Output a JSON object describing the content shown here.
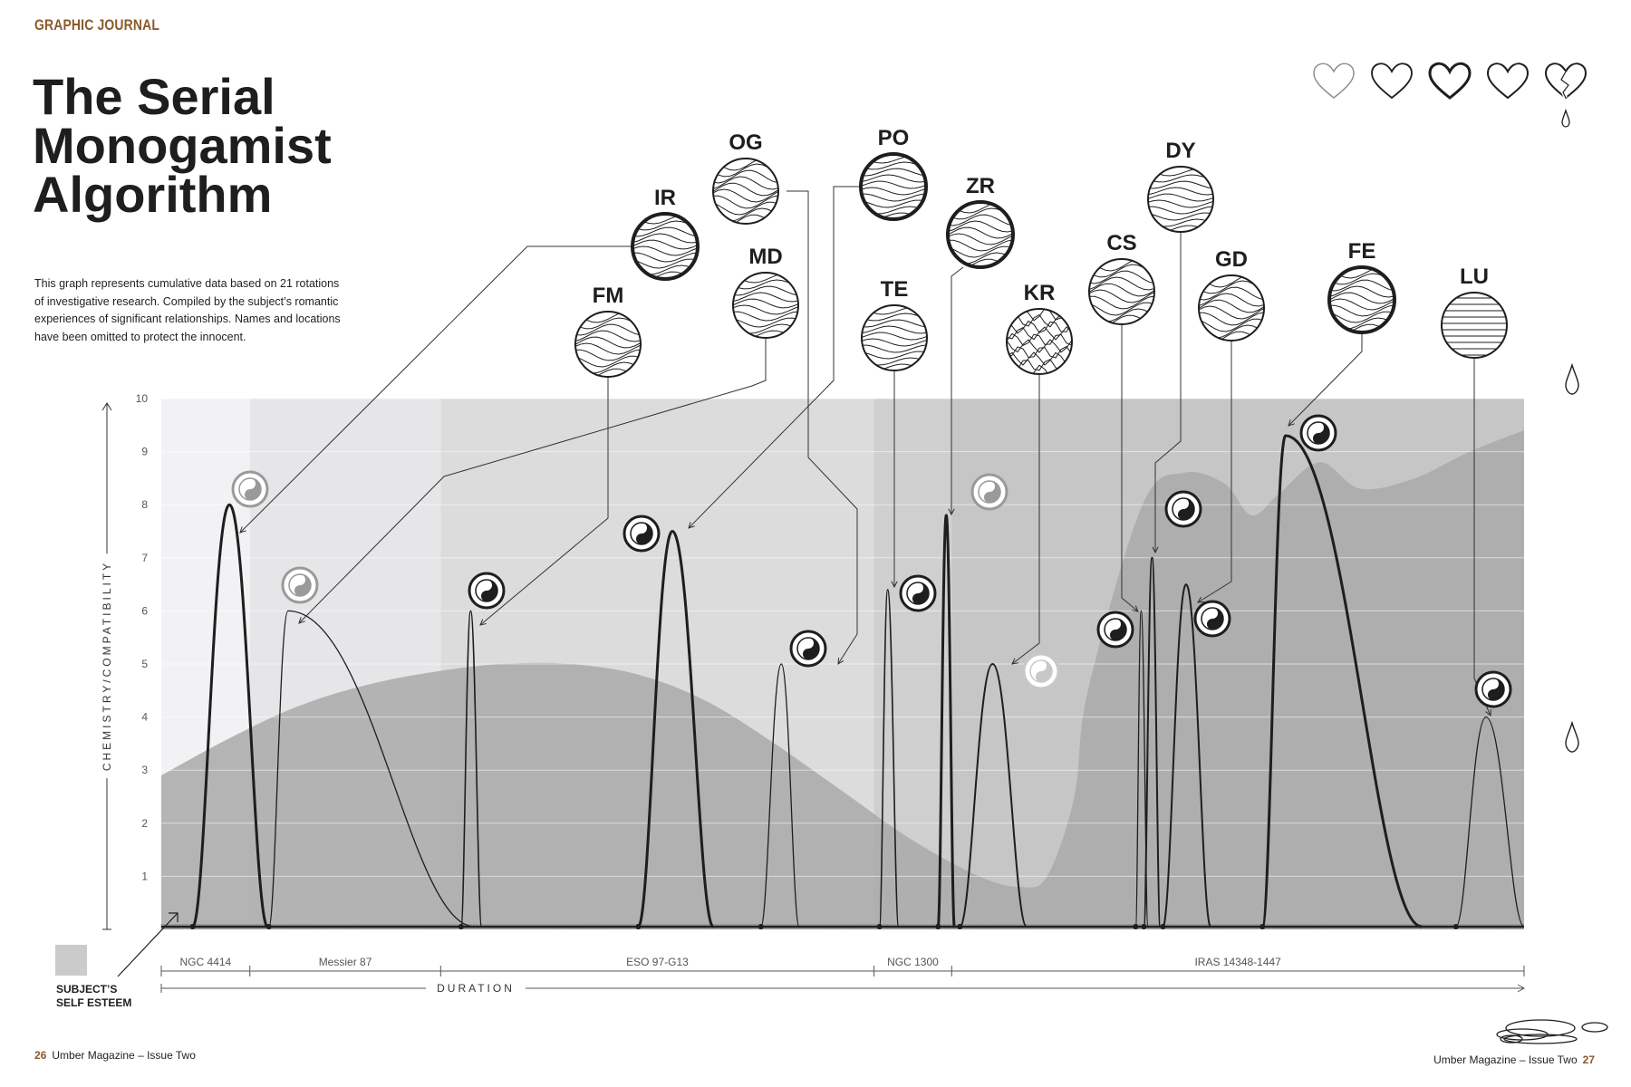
{
  "header": {
    "section_label": "GRAPHIC JOURNAL",
    "title_lines": [
      "The Serial",
      "Monogamist",
      "Algorithm"
    ],
    "intro_lines": [
      "This graph represents cumulative data based on 21 rotations",
      "of investigative research. Compiled by the subject’s romantic",
      "experiences of significant relationships. Names and locations",
      "have been omitted to protect the innocent."
    ]
  },
  "footer": {
    "left_page": "26",
    "left_text": "Umber Magazine – Issue Two",
    "right_text": "Umber Magazine – Issue Two",
    "right_page": "27"
  },
  "legend": {
    "swatch_color": "#cbcbcb",
    "label_lines": [
      "SUBJECT’S",
      "SELF ESTEEM"
    ]
  },
  "hearts": [
    "outline-light",
    "outline",
    "outline-bold",
    "outline",
    "broken"
  ],
  "colors": {
    "accent": "#8a5a2b",
    "ink": "#1e1e1e",
    "self_esteem": "#a9a9a9",
    "phase_bands": [
      "#f2f2f4",
      "#e6e6e8",
      "#dcdcdd",
      "#cfcfd0",
      "#c6c6c7"
    ]
  },
  "chart_data": {
    "type": "line",
    "ylabel": "CHEMISTRY/COMPATIBILITY",
    "xlabel": "DURATION",
    "ylim": [
      0,
      10
    ],
    "yticks": [
      "1",
      "2",
      "3",
      "4",
      "5",
      "6",
      "7",
      "8",
      "9",
      "10"
    ],
    "xlim": [
      0,
      100
    ],
    "grid": true,
    "phases": [
      {
        "label": "NGC 4414",
        "start": 0,
        "end": 6.5
      },
      {
        "label": "Messier 87",
        "start": 6.5,
        "end": 20.5
      },
      {
        "label": "ESO 97-G13",
        "start": 20.5,
        "end": 52.3
      },
      {
        "label": "NGC 1300",
        "start": 52.3,
        "end": 58
      },
      {
        "label": "IRAS 14348-1447",
        "start": 58,
        "end": 100
      }
    ],
    "self_esteem": {
      "name": "SUBJECT’S SELF ESTEEM",
      "x": [
        0,
        5,
        10,
        15,
        20,
        25,
        30,
        35,
        40,
        45,
        50,
        55,
        60,
        63,
        65,
        67,
        68,
        72,
        75,
        78,
        80,
        82,
        85,
        88,
        92,
        96,
        100
      ],
      "y": [
        2.9,
        3.6,
        4.2,
        4.6,
        4.85,
        5.0,
        5.0,
        4.8,
        4.3,
        3.5,
        2.6,
        1.7,
        1.0,
        0.8,
        1.0,
        2.5,
        4.5,
        8.0,
        8.6,
        8.4,
        7.8,
        8.2,
        8.8,
        8.3,
        8.5,
        9.0,
        9.4
      ]
    },
    "relationships": [
      {
        "name": "IR",
        "x": [
          2.3,
          5.0,
          7.8
        ],
        "peak": 8.0,
        "stroke": 3,
        "mood": "grey"
      },
      {
        "name": "OG",
        "x": [
          7.9,
          9.3,
          23.0
        ],
        "peak": 6.0,
        "stroke": 1.3,
        "mood": "grey"
      },
      {
        "name": "FM",
        "x": [
          22.0,
          22.7,
          23.5
        ],
        "peak": 6.0,
        "stroke": 1.6,
        "mood": "black"
      },
      {
        "name": "PO",
        "x": [
          35.0,
          37.5,
          40.5
        ],
        "peak": 7.5,
        "stroke": 3,
        "mood": "black"
      },
      {
        "name": "MD",
        "x": [
          44.0,
          45.5,
          46.8
        ],
        "peak": 5.0,
        "stroke": 1.3,
        "mood": "black"
      },
      {
        "name": "TE",
        "x": [
          52.7,
          53.3,
          54.1
        ],
        "peak": 6.4,
        "stroke": 1.6,
        "mood": "black"
      },
      {
        "name": "ZR",
        "x": [
          57.0,
          57.6,
          58.2
        ],
        "peak": 7.8,
        "stroke": 3,
        "mood": "grey"
      },
      {
        "name": "KR",
        "x": [
          58.6,
          61.0,
          63.5
        ],
        "peak": 5.0,
        "stroke": 2,
        "mood": "light"
      },
      {
        "name": "CS",
        "x": [
          71.5,
          71.9,
          72.4
        ],
        "peak": 6.0,
        "stroke": 1.3,
        "mood": "black"
      },
      {
        "name": "DY",
        "x": [
          72.1,
          72.7,
          73.3
        ],
        "peak": 7.0,
        "stroke": 2,
        "mood": "black"
      },
      {
        "name": "GD",
        "x": [
          73.5,
          75.2,
          77.0
        ],
        "peak": 6.5,
        "stroke": 2,
        "mood": "black"
      },
      {
        "name": "FE",
        "x": [
          80.8,
          82.5,
          92.5
        ],
        "peak": 9.3,
        "stroke": 3,
        "mood": "black"
      },
      {
        "name": "LU",
        "x": [
          95.0,
          97.2,
          100
        ],
        "peak": 4.0,
        "stroke": 1.3,
        "mood": "black"
      }
    ]
  }
}
